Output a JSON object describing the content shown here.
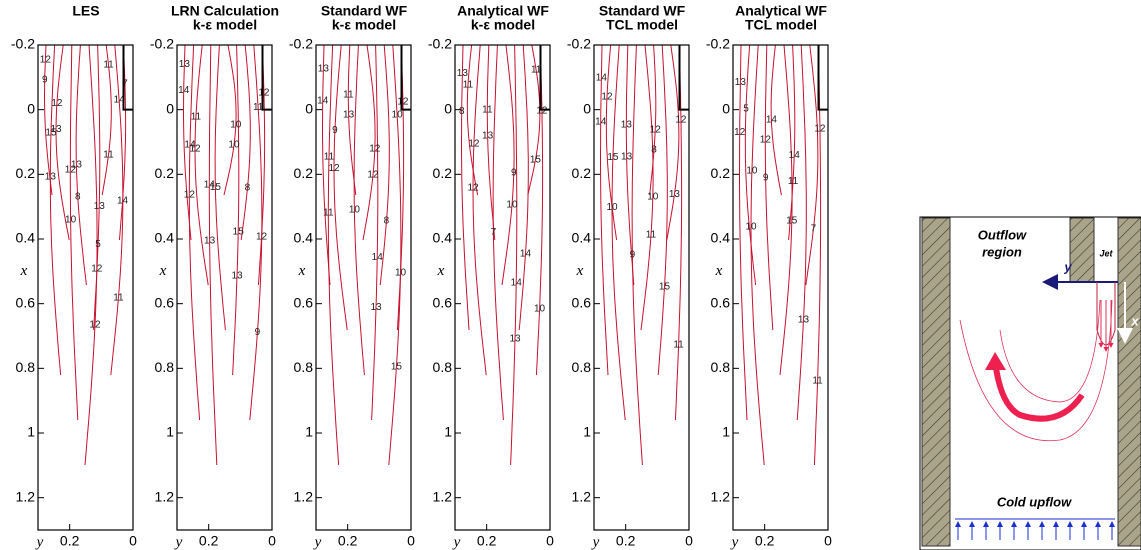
{
  "panels": [
    {
      "title": [
        "LES"
      ],
      "contour_labels": [
        "12",
        "12",
        "13",
        "14",
        "12",
        "12",
        "11",
        "15",
        "13",
        "11",
        "9",
        "10",
        "5",
        "7",
        "13",
        "12",
        "14",
        "13",
        "8",
        "11"
      ]
    },
    {
      "title": [
        "LRN Calculation",
        "k-ε model"
      ],
      "contour_labels": [
        "13",
        "14",
        "15",
        "12",
        "11",
        "10",
        "9",
        "14",
        "15",
        "8",
        "14",
        "13",
        "13",
        "12",
        "12",
        "10",
        "11",
        "12"
      ]
    },
    {
      "title": [
        "Standard WF",
        "k-ε model"
      ],
      "contour_labels": [
        "13",
        "11",
        "14",
        "10",
        "9",
        "12",
        "15",
        "11",
        "10",
        "8",
        "14",
        "13",
        "13",
        "12",
        "12",
        "12",
        "10",
        "11"
      ]
    },
    {
      "title": [
        "Analytical WF",
        "k-ε model"
      ],
      "contour_labels": [
        "13",
        "11",
        "14",
        "10",
        "12",
        "9",
        "15",
        "11",
        "7",
        "14",
        "8",
        "13",
        "13",
        "12",
        "12",
        "10",
        "11"
      ]
    },
    {
      "title": [
        "Standard WF",
        "TCL model"
      ],
      "contour_labels": [
        "14",
        "13",
        "12",
        "11",
        "15",
        "10",
        "13",
        "12",
        "9",
        "15",
        "14",
        "13",
        "8",
        "12",
        "10",
        "11"
      ]
    },
    {
      "title": [
        "Analytical WF",
        "TCL model"
      ],
      "contour_labels": [
        "13",
        "12",
        "14",
        "11",
        "10",
        "15",
        "7",
        "5",
        "14",
        "13",
        "12",
        "9",
        "11",
        "12",
        "10"
      ]
    }
  ],
  "axes": {
    "xlabel": "y",
    "ylabel": "x",
    "ylim": [
      -0.2,
      1.3
    ],
    "yticks": [
      -0.2,
      0,
      0.2,
      0.4,
      0.6,
      0.8,
      1,
      1.2
    ],
    "xlim": [
      0.3,
      0
    ],
    "xticks": [
      0.2,
      0
    ]
  },
  "diagram": {
    "outflow": [
      "Outflow",
      "region"
    ],
    "jet": "Jet",
    "y_axis": "y",
    "x_axis": "x",
    "upflow": "Cold upflow"
  }
}
